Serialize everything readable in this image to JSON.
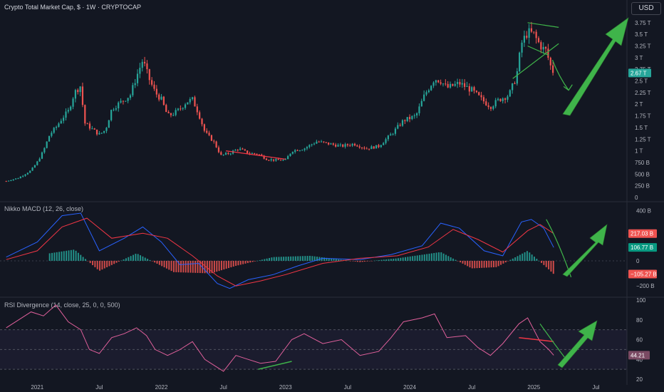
{
  "header": {
    "symbol_title": "Crypto Total Market Cap, $ · 1W · CRYPTOCAP",
    "currency_button": "USD"
  },
  "panes": {
    "macd_label": "Nikko MACD (12, 26, close)",
    "rsi_label": "RSI Divergence (14, close, 25, 0, 0, 500)"
  },
  "colors": {
    "background": "#131722",
    "up": "#26a69a",
    "down": "#ef5350",
    "macd_line": "#2962ff",
    "signal_line": "#f23645",
    "rsi_line": "#e0609b",
    "annotation_green": "#3fb44a",
    "annotation_red": "#f23645"
  },
  "chart_data": [
    {
      "type": "candlestick",
      "title": "Crypto Total Market Cap, $ · 1W · CRYPTOCAP",
      "x_tick_labels": [
        "2021",
        "Jul",
        "2022",
        "Jul",
        "2023",
        "Jul",
        "2024",
        "Jul",
        "2025",
        "Jul"
      ],
      "y_tick_labels": [
        "0",
        "250 B",
        "500 B",
        "750 B",
        "1 T",
        "1.25 T",
        "1.5 T",
        "1.75 T",
        "2 T",
        "2.25 T",
        "2.5 T",
        "2.75 T",
        "3 T",
        "3.25 T",
        "3.5 T",
        "3.75 T"
      ],
      "ylim": [
        0,
        3.9
      ],
      "y_unit": "T USD",
      "last_value_label": "2.67 T",
      "series": [
        {
          "name": "weekly close (approx.)",
          "values": [
            [
              2020.75,
              0.35
            ],
            [
              2020.85,
              0.42
            ],
            [
              2020.95,
              0.58
            ],
            [
              2021.0,
              0.76
            ],
            [
              2021.05,
              1.0
            ],
            [
              2021.1,
              1.35
            ],
            [
              2021.15,
              1.5
            ],
            [
              2021.2,
              1.7
            ],
            [
              2021.25,
              1.85
            ],
            [
              2021.3,
              2.25
            ],
            [
              2021.35,
              2.4
            ],
            [
              2021.38,
              1.6
            ],
            [
              2021.45,
              1.45
            ],
            [
              2021.5,
              1.35
            ],
            [
              2021.55,
              1.45
            ],
            [
              2021.6,
              1.9
            ],
            [
              2021.65,
              2.0
            ],
            [
              2021.7,
              2.1
            ],
            [
              2021.75,
              2.2
            ],
            [
              2021.8,
              2.6
            ],
            [
              2021.85,
              2.95
            ],
            [
              2021.9,
              2.55
            ],
            [
              2021.95,
              2.25
            ],
            [
              2022.0,
              2.1
            ],
            [
              2022.05,
              1.75
            ],
            [
              2022.1,
              1.8
            ],
            [
              2022.15,
              1.9
            ],
            [
              2022.2,
              2.05
            ],
            [
              2022.25,
              2.1
            ],
            [
              2022.3,
              1.8
            ],
            [
              2022.35,
              1.4
            ],
            [
              2022.42,
              1.2
            ],
            [
              2022.48,
              0.9
            ],
            [
              2022.55,
              0.95
            ],
            [
              2022.62,
              1.05
            ],
            [
              2022.7,
              0.95
            ],
            [
              2022.78,
              0.93
            ],
            [
              2022.85,
              0.82
            ],
            [
              2022.92,
              0.8
            ],
            [
              2023.0,
              0.8
            ],
            [
              2023.05,
              1.0
            ],
            [
              2023.15,
              1.05
            ],
            [
              2023.25,
              1.2
            ],
            [
              2023.35,
              1.15
            ],
            [
              2023.45,
              1.1
            ],
            [
              2023.55,
              1.15
            ],
            [
              2023.65,
              1.05
            ],
            [
              2023.75,
              1.1
            ],
            [
              2023.85,
              1.35
            ],
            [
              2023.95,
              1.65
            ],
            [
              2024.05,
              1.75
            ],
            [
              2024.12,
              2.2
            ],
            [
              2024.2,
              2.55
            ],
            [
              2024.25,
              2.5
            ],
            [
              2024.3,
              2.35
            ],
            [
              2024.4,
              2.45
            ],
            [
              2024.5,
              2.3
            ],
            [
              2024.58,
              2.1
            ],
            [
              2024.65,
              1.95
            ],
            [
              2024.72,
              2.1
            ],
            [
              2024.8,
              2.2
            ],
            [
              2024.86,
              2.6
            ],
            [
              2024.9,
              3.3
            ],
            [
              2024.95,
              3.55
            ],
            [
              2025.0,
              3.5
            ],
            [
              2025.03,
              3.35
            ],
            [
              2025.07,
              3.2
            ],
            [
              2025.1,
              3.15
            ],
            [
              2025.13,
              2.85
            ],
            [
              2025.16,
              2.67
            ]
          ]
        }
      ]
    },
    {
      "type": "bar",
      "title": "Nikko MACD (12, 26, close)",
      "y_tick_labels": [
        "400 B",
        "200 B",
        "0",
        "−200 B"
      ],
      "ylim": [
        -250,
        420
      ],
      "y_unit": "B",
      "value_labels": [
        "217.03 B",
        "106.77 B",
        "−105.27 B"
      ],
      "series": [
        {
          "name": "MACD",
          "values": [
            [
              2020.75,
              30
            ],
            [
              2021.0,
              150
            ],
            [
              2021.2,
              360
            ],
            [
              2021.35,
              380
            ],
            [
              2021.5,
              80
            ],
            [
              2021.7,
              180
            ],
            [
              2021.85,
              270
            ],
            [
              2022.0,
              150
            ],
            [
              2022.15,
              -30
            ],
            [
              2022.3,
              -20
            ],
            [
              2022.45,
              -180
            ],
            [
              2022.55,
              -220
            ],
            [
              2022.7,
              -150
            ],
            [
              2022.9,
              -110
            ],
            [
              2023.1,
              -40
            ],
            [
              2023.3,
              20
            ],
            [
              2023.6,
              10
            ],
            [
              2023.85,
              50
            ],
            [
              2024.1,
              120
            ],
            [
              2024.25,
              300
            ],
            [
              2024.4,
              260
            ],
            [
              2024.6,
              80
            ],
            [
              2024.75,
              40
            ],
            [
              2024.9,
              310
            ],
            [
              2024.98,
              330
            ],
            [
              2025.08,
              260
            ],
            [
              2025.16,
              106.77
            ]
          ]
        },
        {
          "name": "Signal",
          "values": [
            [
              2020.75,
              10
            ],
            [
              2021.0,
              80
            ],
            [
              2021.2,
              270
            ],
            [
              2021.4,
              340
            ],
            [
              2021.6,
              180
            ],
            [
              2021.85,
              220
            ],
            [
              2022.05,
              180
            ],
            [
              2022.25,
              40
            ],
            [
              2022.45,
              -120
            ],
            [
              2022.6,
              -200
            ],
            [
              2022.8,
              -160
            ],
            [
              2023.0,
              -110
            ],
            [
              2023.3,
              -20
            ],
            [
              2023.6,
              20
            ],
            [
              2023.9,
              40
            ],
            [
              2024.15,
              110
            ],
            [
              2024.35,
              250
            ],
            [
              2024.55,
              170
            ],
            [
              2024.75,
              70
            ],
            [
              2024.95,
              240
            ],
            [
              2025.05,
              290
            ],
            [
              2025.16,
              217.03
            ]
          ]
        },
        {
          "name": "Histogram",
          "values": [
            [
              2021.1,
              60
            ],
            [
              2021.3,
              90
            ],
            [
              2021.5,
              -80
            ],
            [
              2021.8,
              60
            ],
            [
              2022.1,
              -90
            ],
            [
              2022.4,
              -100
            ],
            [
              2022.6,
              -40
            ],
            [
              2022.9,
              30
            ],
            [
              2023.2,
              40
            ],
            [
              2023.6,
              -10
            ],
            [
              2023.9,
              20
            ],
            [
              2024.25,
              70
            ],
            [
              2024.5,
              -60
            ],
            [
              2024.7,
              -50
            ],
            [
              2024.95,
              80
            ],
            [
              2025.1,
              -50
            ],
            [
              2025.16,
              -105.27
            ]
          ]
        }
      ]
    },
    {
      "type": "line",
      "title": "RSI Divergence (14, close, 25, 0, 0, 500)",
      "y_tick_labels": [
        "100",
        "80",
        "60",
        "40",
        "20"
      ],
      "ylim": [
        20,
        100
      ],
      "value_label": "44.21",
      "series": [
        {
          "name": "RSI",
          "values": [
            [
              2020.75,
              72
            ],
            [
              2020.85,
              80
            ],
            [
              2020.95,
              88
            ],
            [
              2021.05,
              84
            ],
            [
              2021.15,
              95
            ],
            [
              2021.25,
              78
            ],
            [
              2021.35,
              70
            ],
            [
              2021.42,
              50
            ],
            [
              2021.5,
              46
            ],
            [
              2021.6,
              62
            ],
            [
              2021.7,
              66
            ],
            [
              2021.8,
              72
            ],
            [
              2021.88,
              64
            ],
            [
              2021.95,
              50
            ],
            [
              2022.05,
              44
            ],
            [
              2022.15,
              50
            ],
            [
              2022.25,
              58
            ],
            [
              2022.35,
              40
            ],
            [
              2022.45,
              32
            ],
            [
              2022.5,
              28
            ],
            [
              2022.6,
              44
            ],
            [
              2022.7,
              40
            ],
            [
              2022.8,
              36
            ],
            [
              2022.92,
              38
            ],
            [
              2023.05,
              60
            ],
            [
              2023.15,
              66
            ],
            [
              2023.3,
              56
            ],
            [
              2023.45,
              60
            ],
            [
              2023.6,
              44
            ],
            [
              2023.75,
              48
            ],
            [
              2023.85,
              62
            ],
            [
              2023.95,
              78
            ],
            [
              2024.1,
              82
            ],
            [
              2024.2,
              86
            ],
            [
              2024.3,
              62
            ],
            [
              2024.45,
              64
            ],
            [
              2024.55,
              52
            ],
            [
              2024.65,
              44
            ],
            [
              2024.75,
              56
            ],
            [
              2024.88,
              76
            ],
            [
              2024.95,
              82
            ],
            [
              2025.05,
              58
            ],
            [
              2025.12,
              50
            ],
            [
              2025.16,
              44.21
            ]
          ]
        }
      ],
      "bands": [
        30,
        50,
        70
      ]
    }
  ],
  "annotations": [
    {
      "name": "price-bullish-arrow",
      "color": "green"
    },
    {
      "name": "macd-bullish-arrow",
      "color": "green"
    },
    {
      "name": "rsi-bullish-arrow",
      "color": "green"
    }
  ]
}
